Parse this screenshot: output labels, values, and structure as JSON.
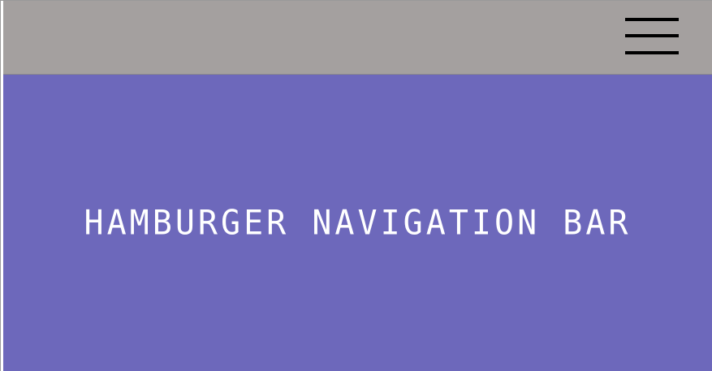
{
  "navbar": {
    "menu_icon": "hamburger-menu-icon",
    "background_color": "#a4a09f"
  },
  "hero": {
    "title": "HAMBURGER NAVIGATION BAR",
    "background_color": "#6d68bb",
    "text_color": "#ffffff"
  }
}
